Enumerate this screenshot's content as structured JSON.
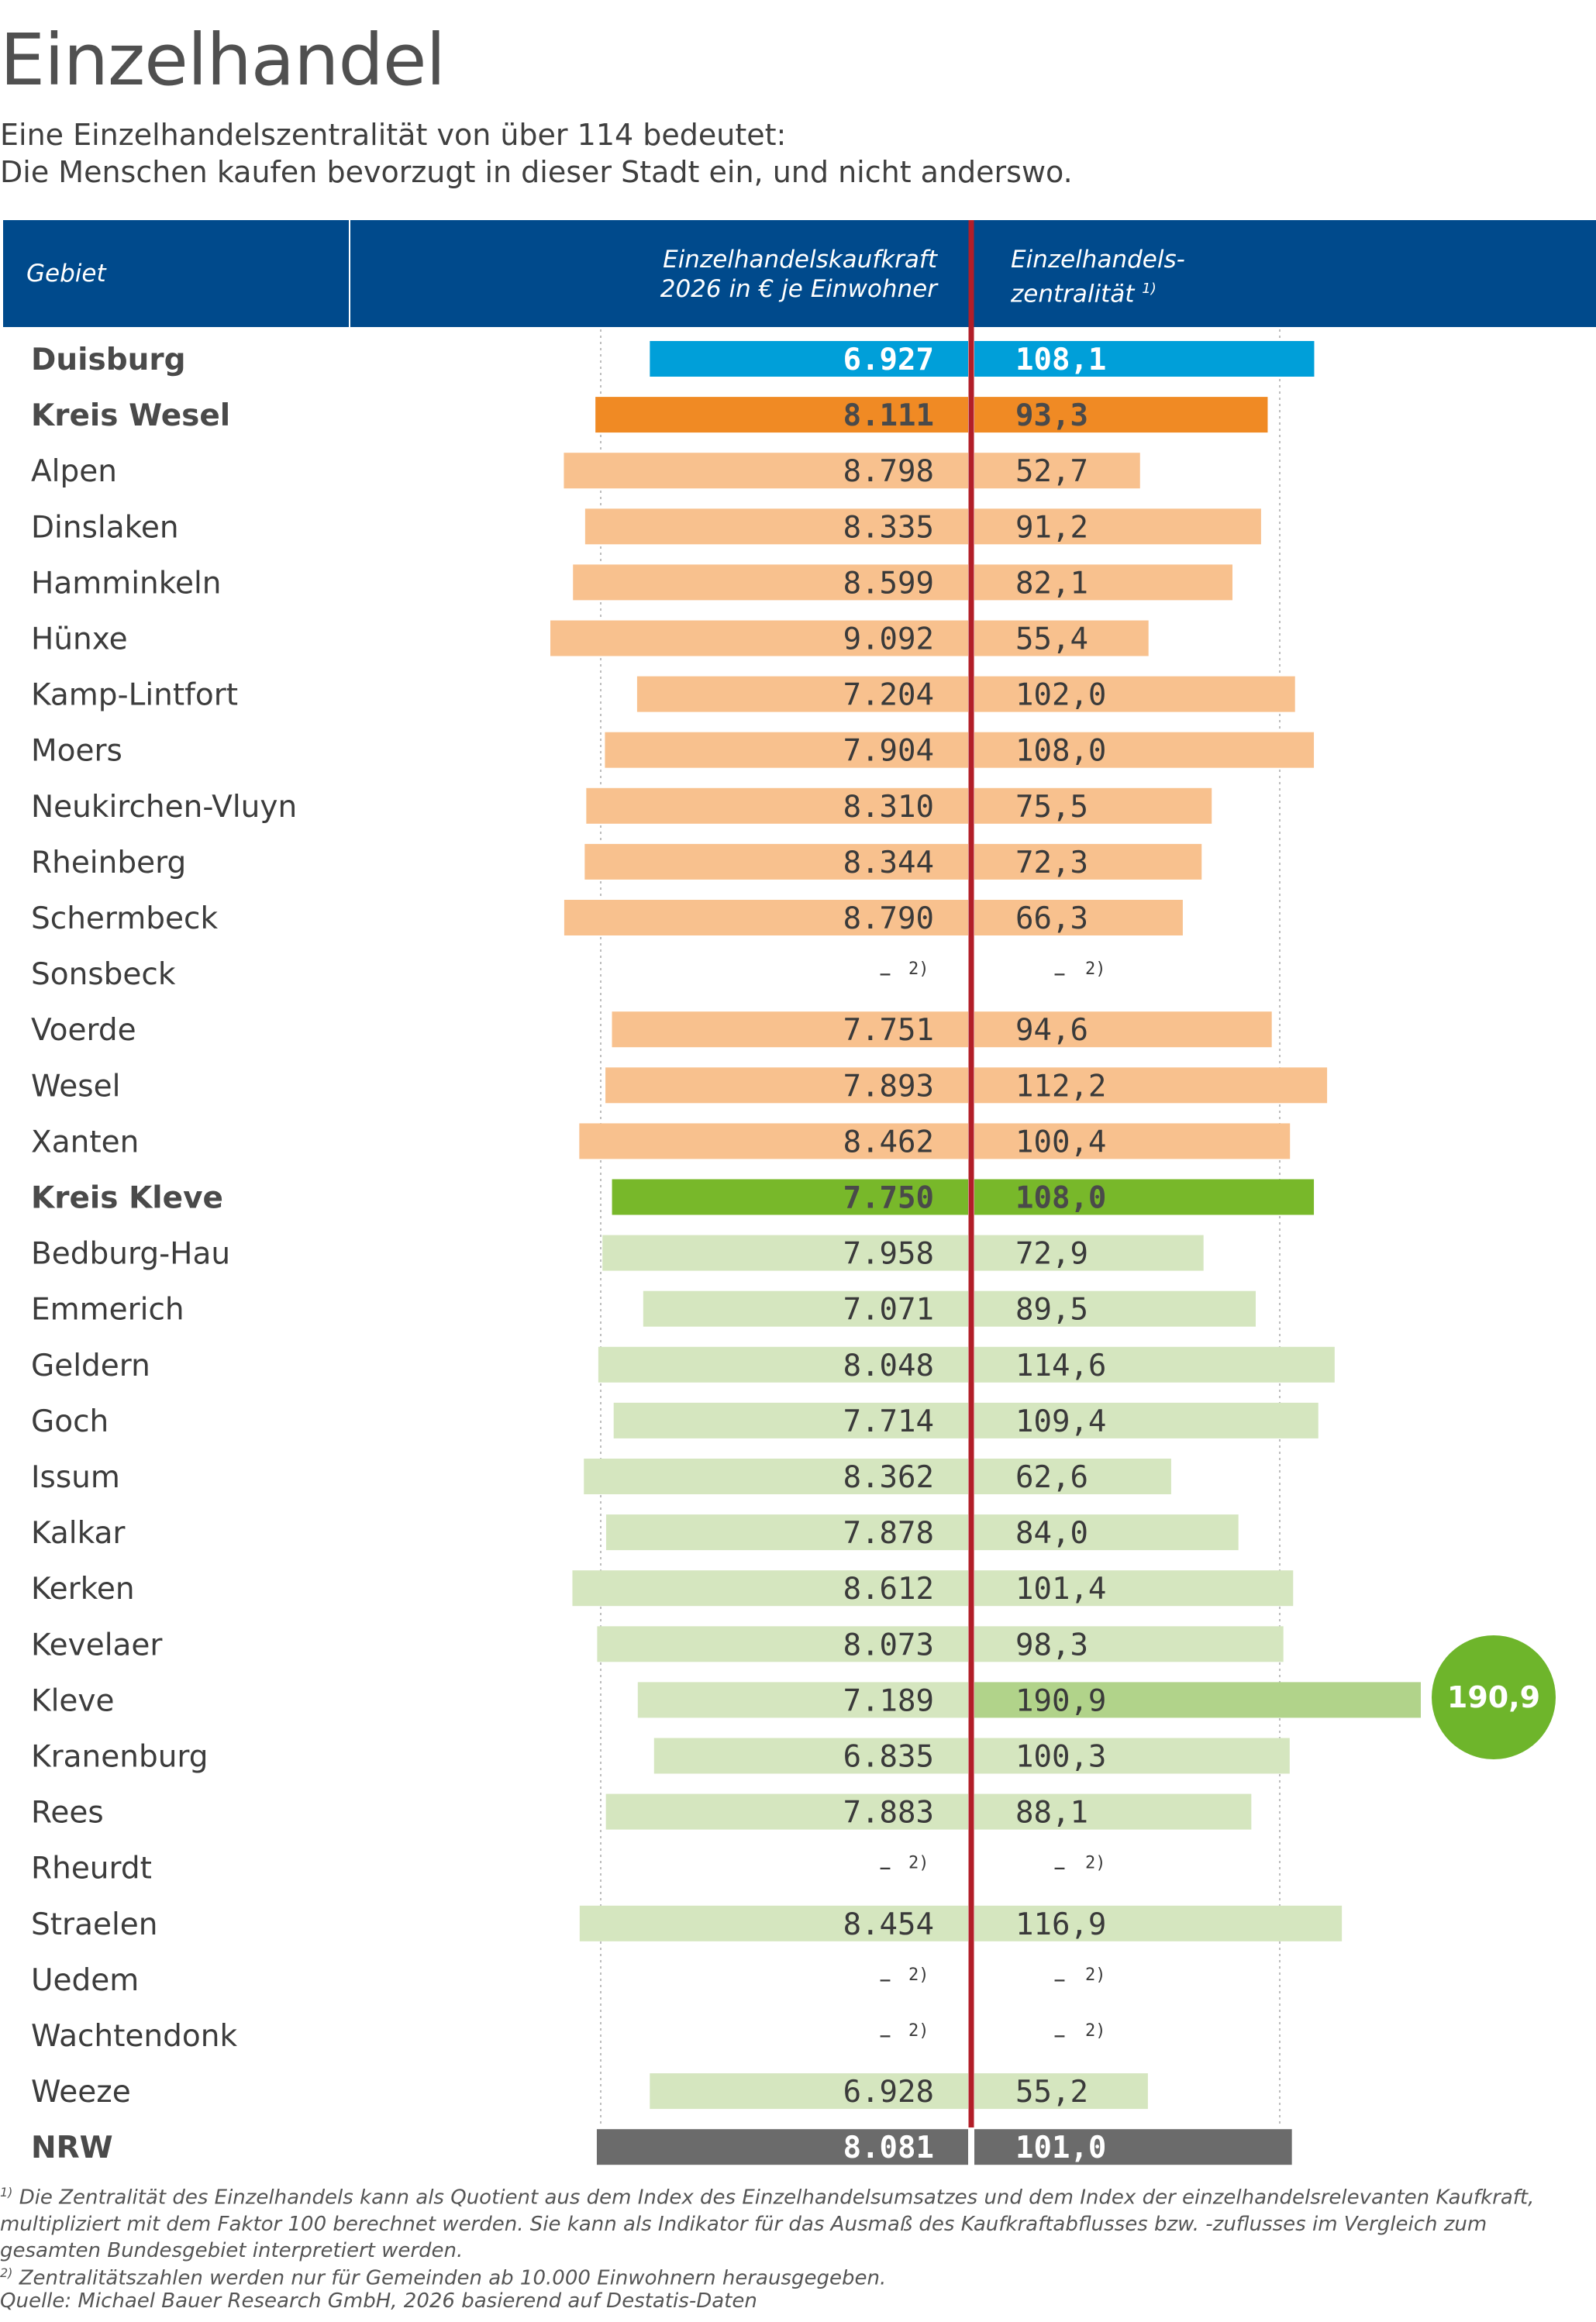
{
  "header": {
    "title": "Einzelhandel",
    "subtitle_line1": "Eine Einzelhandelszentralität von über 114 bedeutet:",
    "subtitle_line2": "Die Menschen kaufen bevorzugt in dieser Stadt ein, und nicht anderswo."
  },
  "table_header": {
    "col_gebiet": "Gebiet",
    "col_kaufkraft_line1": "Einzelhandelskaufkraft",
    "col_kaufkraft_line2": "2026 in € je Einwohner",
    "col_zentralitaet_line1": "Einzelhandels-",
    "col_zentralitaet_line2": "zentralität",
    "col_zentralitaet_note": "1)"
  },
  "missing_symbol": "–",
  "missing_note": "2)",
  "highlight": {
    "label": "190,9"
  },
  "colors": {
    "header_bg": "#004a8c",
    "duisburg": "#009fd9",
    "kreis_wesel": "#f08a24",
    "wesel_towns": "#f8c18e",
    "kreis_kleve": "#78b82a",
    "kleve_towns": "#d5e6bf",
    "kleve_highlight": "#b1d38a",
    "bubble": "#6eb52b",
    "nrw": "#6b6b6b",
    "center_line": "#b21e28"
  },
  "chart_data": {
    "type": "bar",
    "subtype": "butterfly",
    "categories": [
      "Duisburg",
      "Kreis Wesel",
      "Alpen",
      "Dinslaken",
      "Hamminkeln",
      "Hünxe",
      "Kamp-Lintfort",
      "Moers",
      "Neukirchen-Vluyn",
      "Rheinberg",
      "Schermbeck",
      "Sonsbeck",
      "Voerde",
      "Wesel",
      "Xanten",
      "Kreis Kleve",
      "Bedburg-Hau",
      "Emmerich",
      "Geldern",
      "Goch",
      "Issum",
      "Kalkar",
      "Kerken",
      "Kevelaer",
      "Kleve",
      "Kranenburg",
      "Rees",
      "Rheurdt",
      "Straelen",
      "Uedem",
      "Wachtendonk",
      "Weeze",
      "NRW"
    ],
    "series": [
      {
        "name": "Einzelhandelskaufkraft 2026 in € je Einwohner",
        "values": [
          6927,
          8111,
          8798,
          8335,
          8599,
          9092,
          7204,
          7904,
          8310,
          8344,
          8790,
          null,
          7751,
          7893,
          8462,
          7750,
          7958,
          7071,
          8048,
          7714,
          8362,
          7878,
          8612,
          8073,
          7189,
          6835,
          7883,
          null,
          8454,
          null,
          null,
          6928,
          8081
        ],
        "labels": [
          "6.927",
          "8.111",
          "8.798",
          "8.335",
          "8.599",
          "9.092",
          "7.204",
          "7.904",
          "8.310",
          "8.344",
          "8.790",
          null,
          "7.751",
          "7.893",
          "8.462",
          "7.750",
          "7.958",
          "7.071",
          "8.048",
          "7.714",
          "8.362",
          "7.878",
          "8.612",
          "8.073",
          "7.189",
          "6.835",
          "7.883",
          null,
          "8.454",
          null,
          null,
          "6.928",
          "8.081"
        ]
      },
      {
        "name": "Einzelhandelszentralität",
        "values": [
          108.1,
          93.3,
          52.7,
          91.2,
          82.1,
          55.4,
          102.0,
          108.0,
          75.5,
          72.3,
          66.3,
          null,
          94.6,
          112.2,
          100.4,
          108.0,
          72.9,
          89.5,
          114.6,
          109.4,
          62.6,
          84.0,
          101.4,
          98.3,
          190.9,
          100.3,
          88.1,
          null,
          116.9,
          null,
          null,
          55.2,
          101.0
        ],
        "labels": [
          "108,1",
          "93,3",
          "52,7",
          "91,2",
          "82,1",
          "55,4",
          "102,0",
          "108,0",
          "75,5",
          "72,3",
          "66,3",
          null,
          "94,6",
          "112,2",
          "100,4",
          "108,0",
          "72,9",
          "89,5",
          "114,6",
          "109,4",
          "62,6",
          "84,0",
          "101,4",
          "98,3",
          "190,9",
          "100,3",
          "88,1",
          null,
          "116,9",
          null,
          null,
          "55,2",
          "101,0"
        ]
      }
    ],
    "bold_rows": [
      "Duisburg",
      "Kreis Wesel",
      "Kreis Kleve",
      "NRW"
    ],
    "grid": true
  },
  "footnotes": {
    "note1_mark": "1)",
    "note1": "Die Zentralität des Einzelhandels kann als Quotient aus dem Index des Einzelhandelsumsatzes und dem Index der einzelhandelsrelevanten Kaufkraft, multipliziert mit dem Faktor 100 berechnet werden. Sie kann als Indikator für das Ausmaß des Kaufkraftabflusses bzw. -zuflusses im Vergleich zum gesamten Bundesgebiet interpretiert werden.",
    "note2_mark": "2)",
    "note2": "Zentralitätszahlen werden nur für Gemeinden ab 10.000 Einwohnern herausgegeben.",
    "source": "Quelle: Michael Bauer Research GmbH, 2026 basierend auf Destatis-Daten"
  }
}
